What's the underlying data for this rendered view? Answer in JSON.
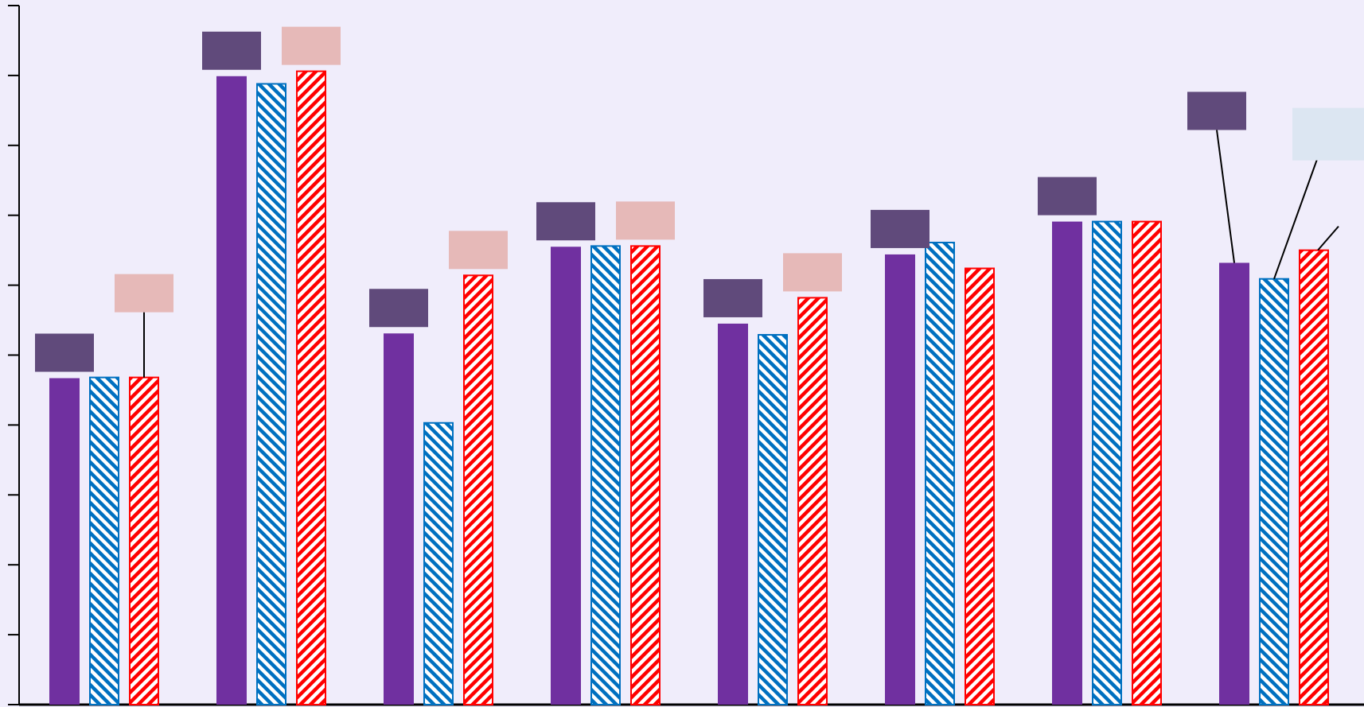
{
  "chart_data": {
    "type": "bar",
    "title": "",
    "xlabel": "",
    "ylabel": "",
    "categories": [
      "",
      "",
      "",
      "",
      "",
      "",
      "",
      ""
    ],
    "ylim": [
      0,
      10
    ],
    "grid": false,
    "legend": "none",
    "series": [
      {
        "style": "solid",
        "color": "#7030a0",
        "values": [
          4.67,
          8.99,
          5.31,
          6.55,
          5.45,
          6.44,
          6.91,
          6.32
        ],
        "label_box_color": "#604a7b"
      },
      {
        "style": "hatch-backslash",
        "color": "#0070c0",
        "values": [
          4.68,
          8.88,
          4.03,
          6.56,
          5.29,
          6.61,
          6.91,
          6.09
        ],
        "label_box_color": "#dce6f2"
      },
      {
        "style": "hatch-slash",
        "color": "#ff0000",
        "values": [
          4.68,
          9.06,
          6.14,
          6.56,
          5.82,
          6.24,
          6.91,
          6.5
        ],
        "label_box_color": "#e6b9b8"
      }
    ],
    "data_label_boxes": [
      {
        "category": 0,
        "series": 0
      },
      {
        "category": 0,
        "series": 2
      },
      {
        "category": 1,
        "series": 0
      },
      {
        "category": 1,
        "series": 2
      },
      {
        "category": 2,
        "series": 0
      },
      {
        "category": 2,
        "series": 2
      },
      {
        "category": 3,
        "series": 0
      },
      {
        "category": 3,
        "series": 2
      },
      {
        "category": 4,
        "series": 0
      },
      {
        "category": 4,
        "series": 2
      },
      {
        "category": 5,
        "series": 0
      },
      {
        "category": 6,
        "series": 0
      },
      {
        "category": 7,
        "series": 0
      },
      {
        "category": 7,
        "series": 1
      }
    ]
  }
}
